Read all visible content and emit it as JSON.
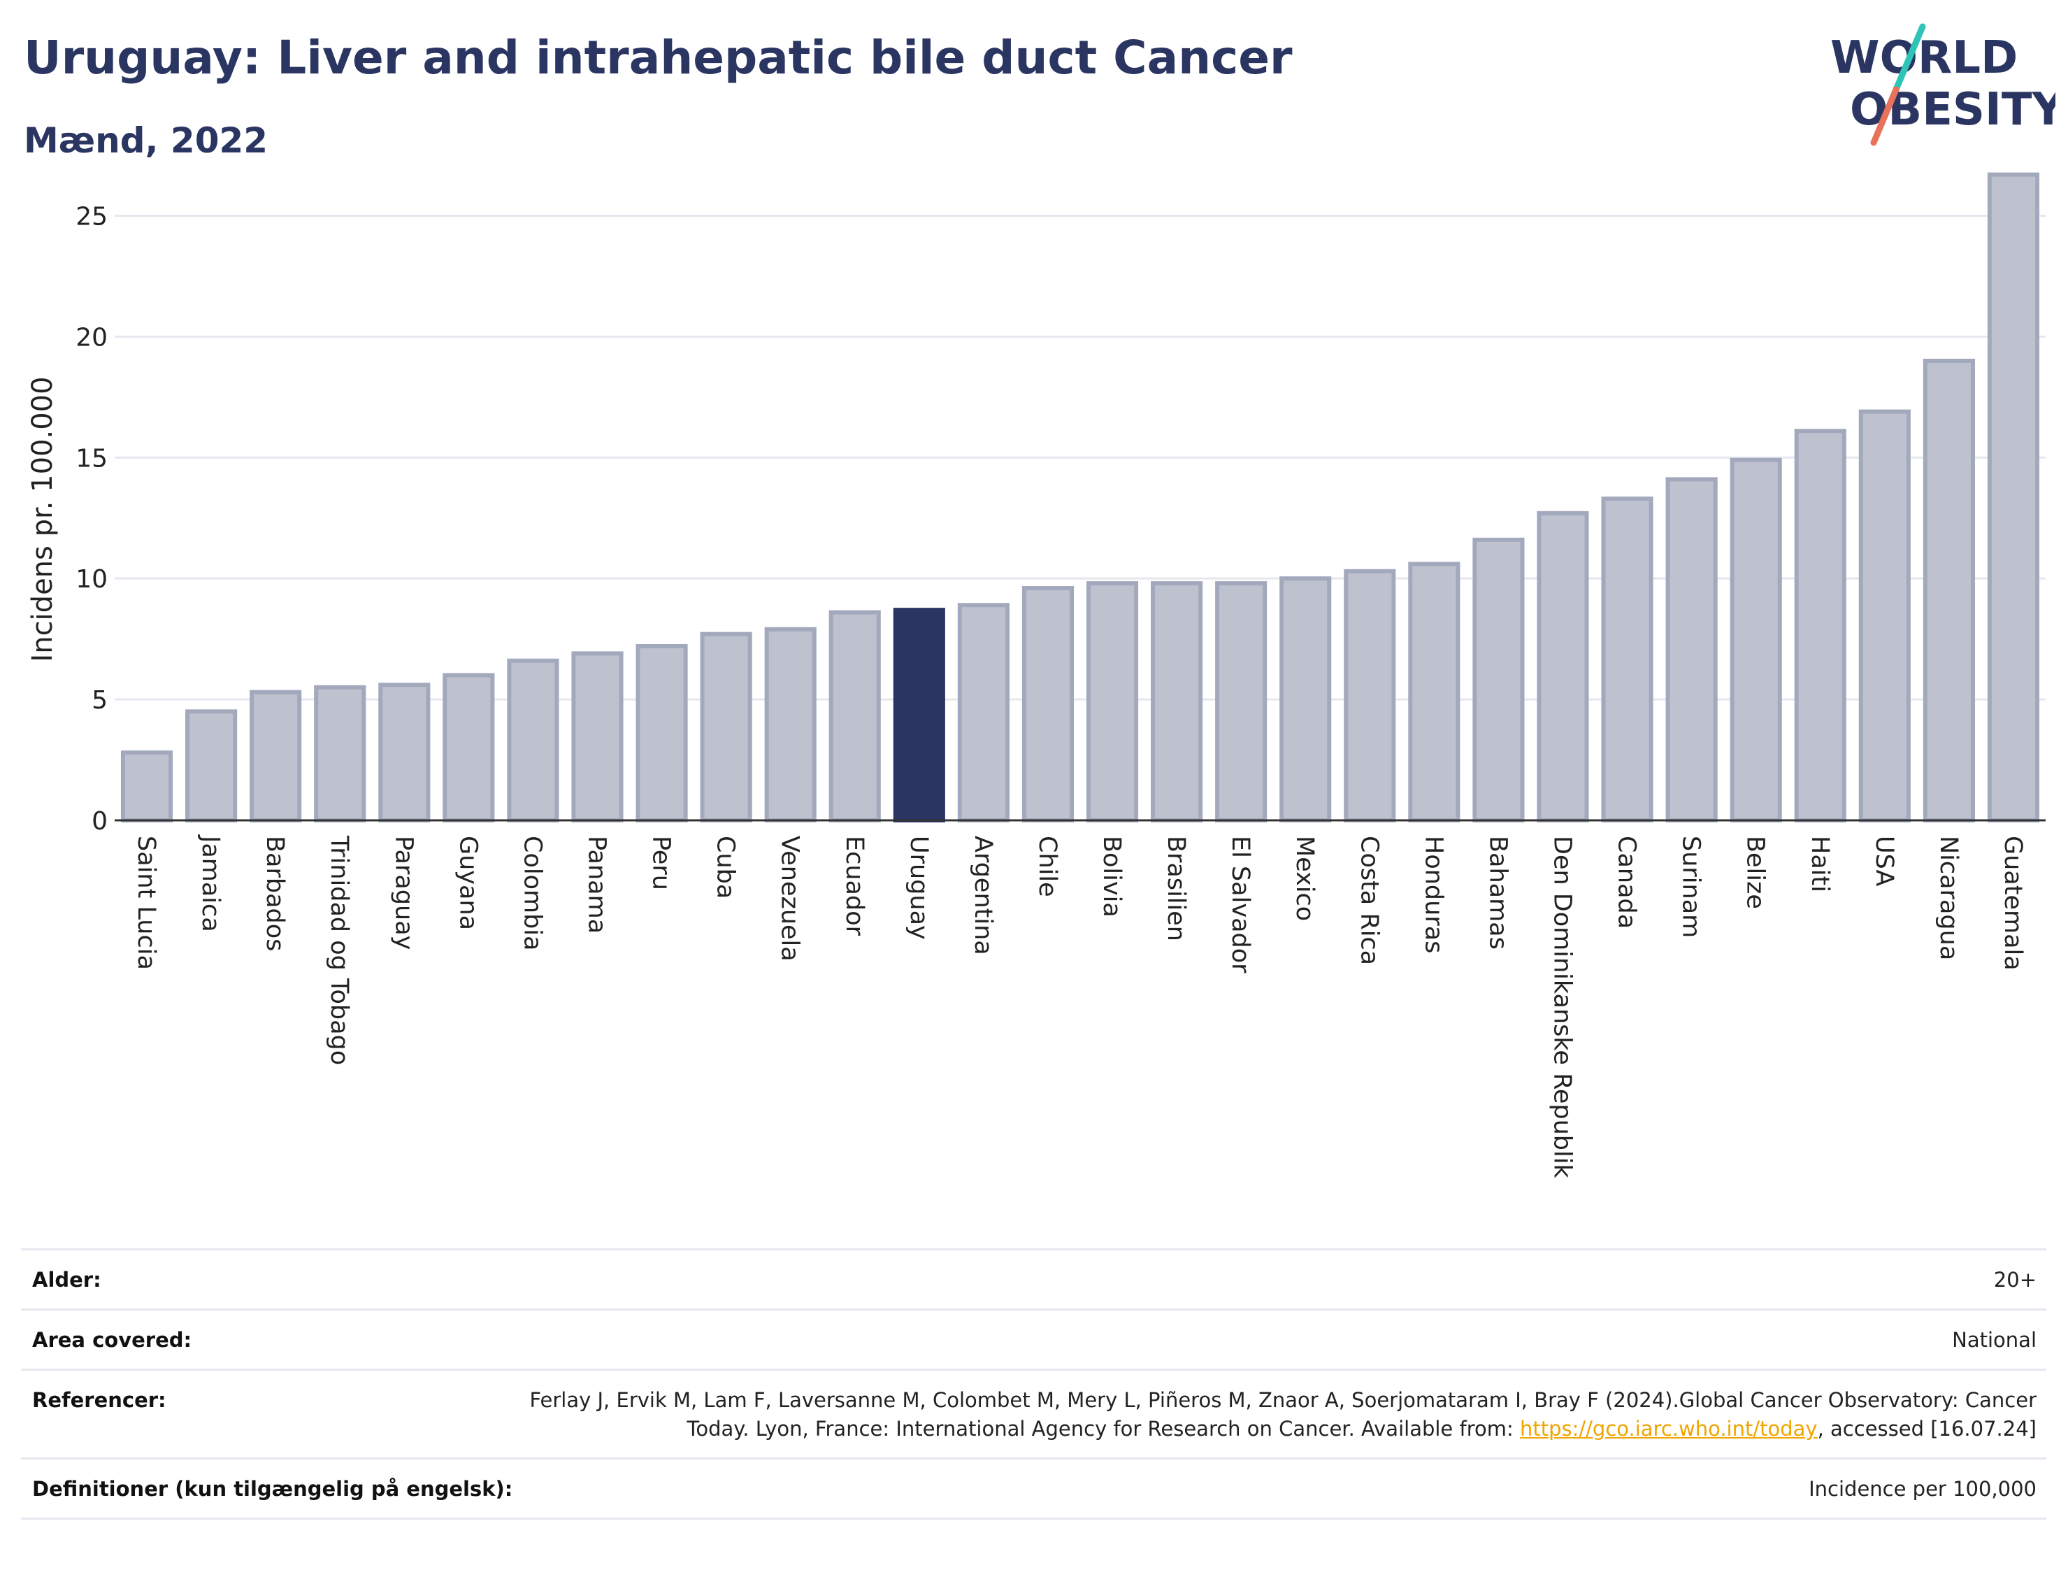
{
  "header": {
    "title": "Uruguay: Liver and intrahepatic bile duct Cancer",
    "subtitle": "Mænd, 2022"
  },
  "logo": {
    "line1": "WORLD",
    "line2": "OBESITY",
    "text_color": "#2a3561",
    "slash_color_top": "#2ec4b6",
    "slash_color_bottom": "#e8735a"
  },
  "colors": {
    "bar_fill": "#bec2cf",
    "bar_stroke": "#a3a9bd",
    "highlight_fill": "#2a3561",
    "grid": "#e6e8ef",
    "axis_line": "#333333"
  },
  "chart_data": {
    "type": "bar",
    "ylabel": "Incidens pr. 100.000",
    "ylim": [
      0,
      27.5
    ],
    "yticks": [
      0,
      5,
      10,
      15,
      20,
      25
    ],
    "grid": true,
    "highlight": "Uruguay",
    "categories": [
      "Saint Lucia",
      "Jamaica",
      "Barbados",
      "Trinidad og Tobago",
      "Paraguay",
      "Guyana",
      "Colombia",
      "Panama",
      "Peru",
      "Cuba",
      "Venezuela",
      "Ecuador",
      "Uruguay",
      "Argentina",
      "Chile",
      "Bolivia",
      "Brasilien",
      "El Salvador",
      "Mexico",
      "Costa Rica",
      "Honduras",
      "Bahamas",
      "Den Dominikanske Republik",
      "Canada",
      "Surinam",
      "Belize",
      "Haiti",
      "USA",
      "Nicaragua",
      "Guatemala"
    ],
    "values": [
      2.8,
      4.5,
      5.3,
      5.5,
      5.6,
      6.0,
      6.6,
      6.9,
      7.2,
      7.7,
      7.9,
      8.6,
      8.7,
      8.9,
      9.6,
      9.8,
      9.8,
      9.8,
      10.0,
      10.3,
      10.6,
      11.6,
      12.7,
      13.3,
      14.1,
      14.9,
      16.1,
      16.9,
      19.0,
      26.7
    ]
  },
  "info": {
    "age_label": "Alder:",
    "age_value": "20+",
    "area_label": "Area covered:",
    "area_value": "National",
    "ref_label": "Referencer:",
    "ref_text1": "Ferlay J, Ervik M, Lam F, Laversanne M, Colombet M, Mery L, Piñeros M, Znaor A, Soerjomataram I, Bray F (2024).Global Cancer Observatory: Cancer Today. Lyon, France: International Agency for Research on Cancer. Available from: ",
    "ref_link": "https://gco.iarc.who.int/today",
    "ref_text2": ", accessed [16.07.24]",
    "def_label": "Definitioner (kun tilgængelig på engelsk):",
    "def_value": "Incidence per 100,000"
  }
}
